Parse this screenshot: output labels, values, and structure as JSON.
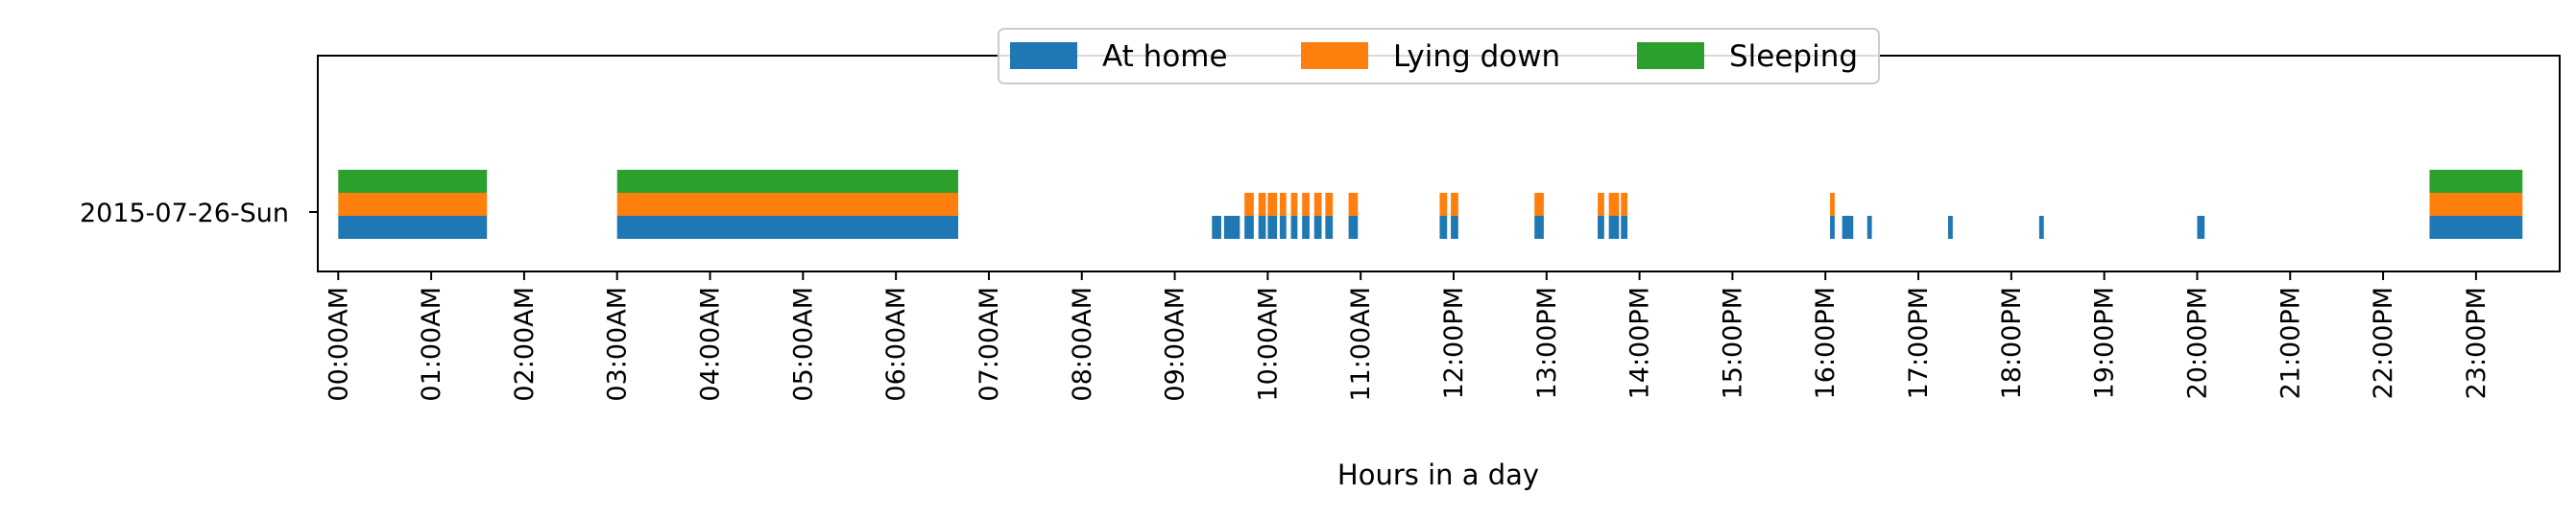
{
  "chart_data": {
    "type": "bar",
    "orientation": "horizontal-timeline",
    "title": "",
    "xlabel": "Hours in a day",
    "ylabel": "",
    "xlim": [
      -0.22,
      23.9
    ],
    "grid": false,
    "legend_placement": "top-center",
    "categories": [
      "2015-07-26-Sun"
    ],
    "x_ticks": [
      "00:00AM",
      "01:00AM",
      "02:00AM",
      "03:00AM",
      "04:00AM",
      "05:00AM",
      "06:00AM",
      "07:00AM",
      "08:00AM",
      "09:00AM",
      "10:00AM",
      "11:00AM",
      "12:00PM",
      "13:00PM",
      "14:00PM",
      "15:00PM",
      "16:00PM",
      "17:00PM",
      "18:00PM",
      "19:00PM",
      "20:00PM",
      "21:00PM",
      "22:00PM",
      "23:00PM"
    ],
    "series": [
      {
        "name": "At home",
        "color": "#1f77b4",
        "intervals": [
          [
            0.0,
            1.6
          ],
          [
            3.0,
            6.67
          ],
          [
            9.4,
            9.5
          ],
          [
            9.53,
            9.7
          ],
          [
            9.75,
            9.85
          ],
          [
            9.9,
            9.98
          ],
          [
            10.0,
            10.1
          ],
          [
            10.13,
            10.2
          ],
          [
            10.25,
            10.32
          ],
          [
            10.37,
            10.45
          ],
          [
            10.5,
            10.58
          ],
          [
            10.62,
            10.7
          ],
          [
            10.87,
            10.97
          ],
          [
            11.85,
            11.93
          ],
          [
            11.97,
            12.05
          ],
          [
            12.87,
            12.97
          ],
          [
            13.55,
            13.62
          ],
          [
            13.67,
            13.78
          ],
          [
            13.8,
            13.87
          ],
          [
            16.05,
            16.1
          ],
          [
            16.18,
            16.3
          ],
          [
            16.45,
            16.5
          ],
          [
            17.32,
            17.37
          ],
          [
            18.3,
            18.35
          ],
          [
            20.0,
            20.08
          ],
          [
            22.5,
            23.5
          ]
        ]
      },
      {
        "name": "Lying down",
        "color": "#ff7f0e",
        "intervals": [
          [
            0.0,
            1.6
          ],
          [
            3.0,
            6.67
          ],
          [
            9.75,
            9.85
          ],
          [
            9.9,
            9.98
          ],
          [
            10.0,
            10.1
          ],
          [
            10.13,
            10.2
          ],
          [
            10.25,
            10.32
          ],
          [
            10.37,
            10.45
          ],
          [
            10.5,
            10.58
          ],
          [
            10.62,
            10.7
          ],
          [
            10.87,
            10.97
          ],
          [
            11.85,
            11.93
          ],
          [
            11.97,
            12.05
          ],
          [
            12.87,
            12.97
          ],
          [
            13.55,
            13.62
          ],
          [
            13.67,
            13.78
          ],
          [
            13.8,
            13.87
          ],
          [
            16.05,
            16.1
          ],
          [
            22.5,
            23.5
          ]
        ]
      },
      {
        "name": "Sleeping",
        "color": "#2ca02c",
        "intervals": [
          [
            0.0,
            1.6
          ],
          [
            3.0,
            6.67
          ],
          [
            22.5,
            23.5
          ]
        ]
      }
    ]
  }
}
